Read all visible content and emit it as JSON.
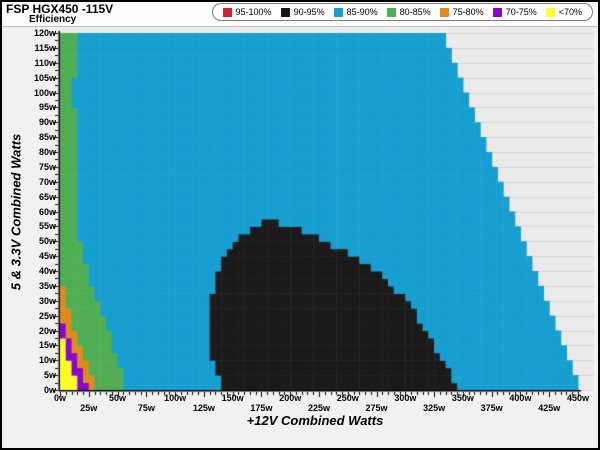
{
  "header": {
    "title": "FSP HGX450 -115V",
    "subtitle": "Efficiency"
  },
  "chart_data": {
    "type": "heatmap",
    "title": "FSP HGX450 -115V",
    "subtitle": "Efficiency",
    "xlabel": "+12V Combined Watts",
    "ylabel": "5 & 3.3V Combined Watts",
    "xlim": [
      0,
      450
    ],
    "ylim": [
      0,
      120
    ],
    "grid": "horizontal",
    "legend_position": "top-right",
    "plot_bg": "#eaeaea",
    "grid_color": "#d5d5d5",
    "axis_color": "#000000",
    "bands": [
      {
        "label": "95-100%",
        "color": "#d42027"
      },
      {
        "label": "90-95%",
        "color": "#151515"
      },
      {
        "label": "85-90%",
        "color": "#169fd0"
      },
      {
        "label": "80-85%",
        "color": "#4fae54"
      },
      {
        "label": "75-80%",
        "color": "#e08a1e"
      },
      {
        "label": "70-75%",
        "color": "#8a06d0"
      },
      {
        "label": "<70%",
        "color": "#fdfd2b"
      }
    ],
    "x_ticks": {
      "step_w": 25,
      "minor_step_w": 5,
      "labels": [
        "0w",
        "25w",
        "50w",
        "75w",
        "100w",
        "125w",
        "150w",
        "175w",
        "200w",
        "225w",
        "250w",
        "275w",
        "300w",
        "325w",
        "350w",
        "375w",
        "400w",
        "425w",
        "450w"
      ]
    },
    "y_ticks": {
      "step_w": 5,
      "minor_step_w": 2.5,
      "labels": [
        "0w",
        "5w",
        "10w",
        "15w",
        "20w",
        "25w",
        "30w",
        "35w",
        "40w",
        "45w",
        "50w",
        "55w",
        "60w",
        "65w",
        "70w",
        "75w",
        "80w",
        "85w",
        "90w",
        "95w",
        "100w",
        "105w",
        "110w",
        "115w",
        "120w"
      ]
    },
    "cell": {
      "w_w": 5,
      "h_w": 2.5
    },
    "envelope": {
      "row_height_w": 5,
      "x_max_per_row": [
        450,
        445,
        440,
        435,
        430,
        425,
        420,
        415,
        410,
        405,
        400,
        395,
        390,
        385,
        380,
        375,
        370,
        365,
        360,
        355,
        350,
        345,
        340,
        335
      ]
    },
    "base_region": {
      "band": "85-90%",
      "color": "#169fd0"
    },
    "regions": [
      {
        "band": "90-95%",
        "color": "#1b1b1b",
        "polygon": [
          [
            145,
            0
          ],
          [
            347,
            0
          ],
          [
            341,
            4
          ],
          [
            333,
            10
          ],
          [
            325,
            15
          ],
          [
            318,
            20
          ],
          [
            310,
            25
          ],
          [
            302,
            30
          ],
          [
            291,
            34
          ],
          [
            281,
            38
          ],
          [
            270,
            41
          ],
          [
            258,
            44
          ],
          [
            245,
            47
          ],
          [
            230,
            50
          ],
          [
            215,
            53
          ],
          [
            200,
            55
          ],
          [
            188,
            57
          ],
          [
            178,
            57
          ],
          [
            165,
            54
          ],
          [
            155,
            51
          ],
          [
            147,
            47
          ],
          [
            141,
            43
          ],
          [
            136,
            38
          ],
          [
            133,
            33
          ],
          [
            131,
            28
          ],
          [
            130,
            22
          ],
          [
            130,
            16
          ],
          [
            132,
            10
          ],
          [
            136,
            5
          ],
          [
            141,
            2
          ]
        ]
      },
      {
        "band": "<70%",
        "color": "#fdfd2b",
        "polygon": [
          [
            0,
            0
          ],
          [
            18,
            0
          ],
          [
            15,
            3
          ],
          [
            12,
            6
          ],
          [
            9,
            9
          ],
          [
            7,
            11
          ],
          [
            5,
            14
          ],
          [
            3,
            16
          ],
          [
            0,
            20
          ]
        ]
      },
      {
        "band": "70-75%",
        "color": "#8a06d0",
        "polygon": [
          [
            0,
            0
          ],
          [
            26,
            0
          ],
          [
            22,
            3
          ],
          [
            18,
            7
          ],
          [
            14,
            11
          ],
          [
            10,
            15
          ],
          [
            7,
            18
          ],
          [
            4,
            21
          ],
          [
            0,
            25
          ]
        ]
      },
      {
        "band": "75-80%",
        "color": "#e08a1e",
        "polygon": [
          [
            0,
            0
          ],
          [
            33,
            0
          ],
          [
            29,
            4
          ],
          [
            25,
            8
          ],
          [
            21,
            12
          ],
          [
            17,
            16
          ],
          [
            13,
            20
          ],
          [
            10,
            24
          ],
          [
            7,
            28
          ],
          [
            4,
            32
          ],
          [
            0,
            38
          ]
        ]
      },
      {
        "band": "80-85%",
        "color": "#4fae54",
        "polygon": [
          [
            0,
            0
          ],
          [
            57,
            0
          ],
          [
            53,
            6
          ],
          [
            49,
            11
          ],
          [
            44,
            17
          ],
          [
            39,
            23
          ],
          [
            33,
            29
          ],
          [
            28,
            35
          ],
          [
            24,
            40
          ],
          [
            21,
            45
          ],
          [
            18,
            50
          ],
          [
            16,
            55
          ],
          [
            15,
            60
          ],
          [
            14,
            66
          ],
          [
            13,
            72
          ],
          [
            14,
            78
          ],
          [
            13,
            84
          ],
          [
            14,
            90
          ],
          [
            12,
            96
          ],
          [
            12,
            102
          ],
          [
            13,
            108
          ],
          [
            14,
            114
          ],
          [
            15,
            120
          ],
          [
            0,
            120
          ]
        ]
      }
    ]
  }
}
